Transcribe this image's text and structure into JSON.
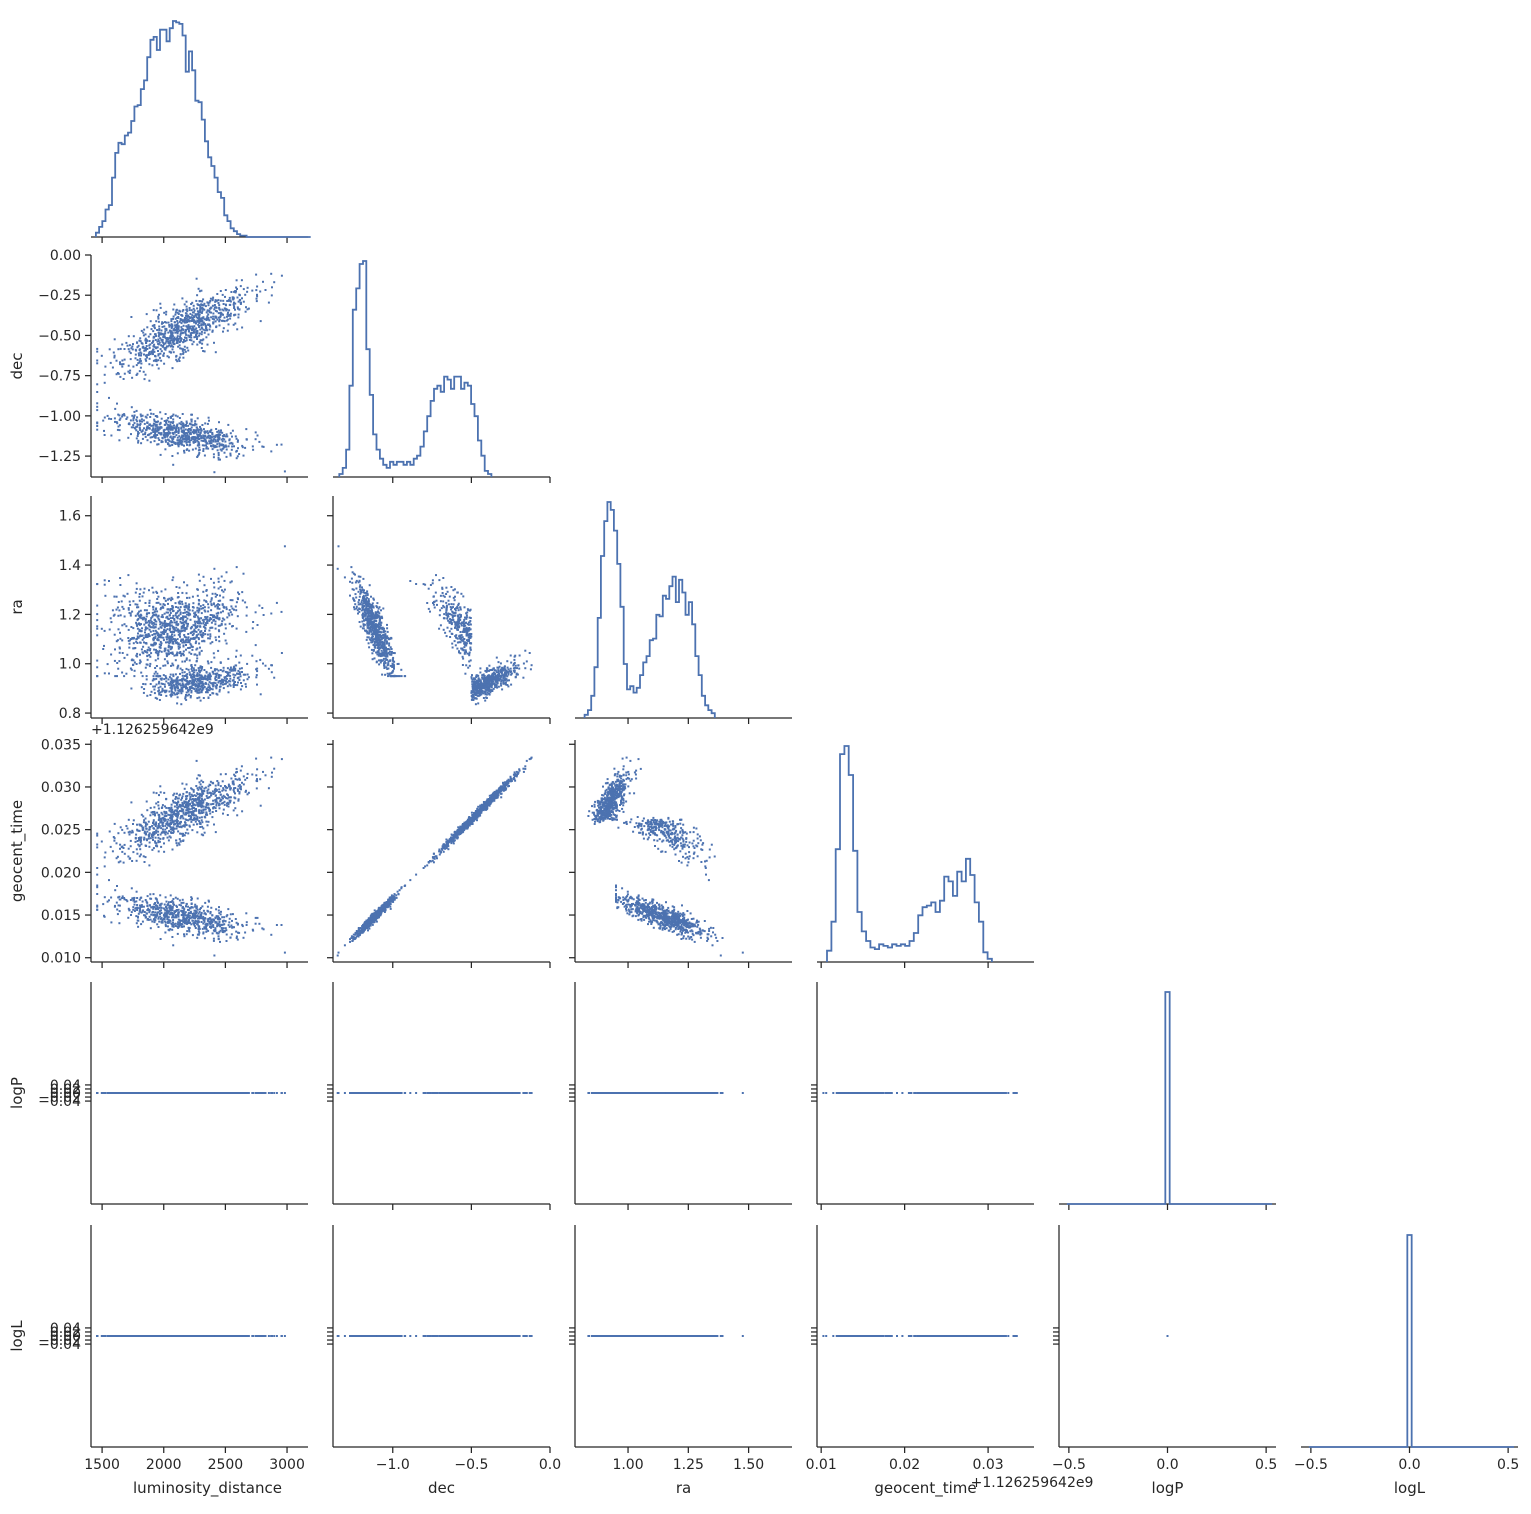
{
  "colors": {
    "series": "#4c72b0",
    "axis": "#262626",
    "background": "#ffffff"
  },
  "chart_data": {
    "type": "scatter",
    "layout": "corner pairplot (lower triangle scatter, diagonal step histograms)",
    "variables": [
      {
        "name": "luminosity_distance",
        "label": "luminosity_distance",
        "range": [
          1410,
          3170
        ],
        "ticks": [
          1500,
          2000,
          2500,
          3000
        ],
        "tick_labels": [
          "1500",
          "2000",
          "2500",
          "3000"
        ],
        "histogram": {
          "edges_start": 1450,
          "bin_width": 26,
          "counts": [
            3,
            7,
            11,
            19,
            22,
            41,
            58,
            65,
            64,
            70,
            72,
            80,
            90,
            91,
            102,
            108,
            124,
            136,
            138,
            129,
            143,
            143,
            135,
            144,
            149,
            148,
            147,
            139,
            114,
            128,
            115,
            94,
            93,
            81,
            66,
            55,
            49,
            41,
            31,
            27,
            15,
            11,
            6,
            4,
            2,
            1,
            1,
            0,
            0,
            0,
            0,
            0,
            0,
            0,
            0,
            0,
            0,
            0,
            0,
            0,
            0,
            0,
            0,
            0,
            0,
            0,
            0
          ]
        }
      },
      {
        "name": "dec",
        "label": "dec",
        "range": [
          -1.38,
          0.0
        ],
        "ticks": [
          -1.25,
          -1.0,
          -0.75,
          -0.5,
          -0.25,
          0.0
        ],
        "tick_labels": [
          "−1.25",
          "−1.00",
          "−0.75",
          "−0.50",
          "−0.25",
          "0.00"
        ],
        "x_ticks": [
          -1.0,
          -0.5,
          0.0
        ],
        "x_tick_labels": [
          "−1.0",
          "−0.5",
          "0.0"
        ],
        "histogram": {
          "edges_start": -1.34,
          "bin_width": 0.0215,
          "counts": [
            1,
            3,
            9,
            30,
            55,
            62,
            70,
            71,
            42,
            27,
            14,
            9,
            6,
            4,
            3,
            5,
            4,
            5,
            5,
            4,
            5,
            4,
            6,
            7,
            10,
            15,
            20,
            25,
            29,
            30,
            28,
            33,
            32,
            29,
            33,
            33,
            29,
            31,
            30,
            24,
            20,
            12,
            7,
            2,
            1
          ]
        }
      },
      {
        "name": "ra",
        "label": "ra",
        "range": [
          0.78,
          1.68
        ],
        "ticks": [
          0.8,
          1.0,
          1.2,
          1.4,
          1.6
        ],
        "tick_labels": [
          "0.8",
          "1.0",
          "1.2",
          "1.4",
          "1.6"
        ],
        "x_ticks": [
          1.0,
          1.25,
          1.5
        ],
        "x_tick_labels": [
          "1.00",
          "1.25",
          "1.50"
        ],
        "histogram": {
          "edges_start": 0.82,
          "bin_width": 0.0135,
          "counts": [
            2,
            5,
            14,
            32,
            63,
            102,
            124,
            136,
            131,
            118,
            97,
            70,
            34,
            18,
            20,
            16,
            19,
            27,
            35,
            39,
            49,
            50,
            65,
            64,
            77,
            75,
            83,
            89,
            73,
            87,
            79,
            65,
            73,
            59,
            39,
            27,
            14,
            8,
            5,
            3
          ]
        }
      },
      {
        "name": "geocent_time",
        "label": "geocent_time",
        "offset_label": "+1.126259642e9",
        "range": [
          0.0095,
          0.0355
        ],
        "ticks": [
          0.01,
          0.015,
          0.02,
          0.025,
          0.03,
          0.035
        ],
        "tick_labels": [
          "0.010",
          "0.015",
          "0.020",
          "0.025",
          "0.030",
          "0.035"
        ],
        "x_ticks": [
          0.01,
          0.02,
          0.03
        ],
        "x_tick_labels": [
          "0.01",
          "0.02",
          "0.03"
        ],
        "histogram": {
          "edges_start": 0.0107,
          "bin_width": 0.00052,
          "counts": [
            7,
            25,
            70,
            129,
            134,
            116,
            69,
            31,
            19,
            13,
            9,
            8,
            11,
            10,
            9,
            11,
            10,
            11,
            10,
            13,
            18,
            29,
            34,
            35,
            37,
            31,
            38,
            53,
            50,
            41,
            56,
            50,
            64,
            54,
            37,
            25,
            6,
            2
          ]
        }
      },
      {
        "name": "logP",
        "label": "logP",
        "range": [
          -0.55,
          0.55
        ],
        "ticks": [
          -0.04,
          -0.02,
          0.0,
          0.02,
          0.04
        ],
        "tick_labels": [
          "−0.04",
          "−0.02",
          "0.00",
          "0.02",
          "0.04"
        ],
        "x_ticks": [
          -0.5,
          0.0,
          0.5
        ],
        "x_tick_labels": [
          "−0.5",
          "0.0",
          "0.5"
        ],
        "histogram": {
          "value": 0.0,
          "bin_width": 0.022
        }
      },
      {
        "name": "logL",
        "label": "logL",
        "range": [
          -0.55,
          0.55
        ],
        "ticks": [
          -0.04,
          -0.02,
          0.0,
          0.02,
          0.04
        ],
        "tick_labels": [
          "−0.04",
          "−0.02",
          "0.00",
          "0.02",
          "0.04"
        ],
        "x_ticks": [
          -0.5,
          0.0,
          0.5
        ],
        "x_tick_labels": [
          "−0.5",
          "0.0",
          "0.5"
        ],
        "histogram": {
          "value": 0.0,
          "bin_width": 0.022
        }
      }
    ],
    "scatter_samples": {
      "n_points": 1600,
      "modes": [
        {
          "weight": 0.55,
          "luminosity_distance": [
            1500,
            2900
          ],
          "dec": [
            -0.72,
            -0.17
          ],
          "ra": [
            1.12,
            1.45
          ],
          "geocent_time": [
            0.024,
            0.033
          ]
        },
        {
          "weight": 0.45,
          "luminosity_distance": [
            1500,
            2900
          ],
          "dec": [
            -1.05,
            -1.22
          ],
          "ra": [
            0.92,
            1.0
          ],
          "geocent_time": [
            0.016,
            0.0125
          ]
        }
      ],
      "logP": 0.0,
      "logL": 0.0
    },
    "grid": false,
    "legend": "none"
  }
}
